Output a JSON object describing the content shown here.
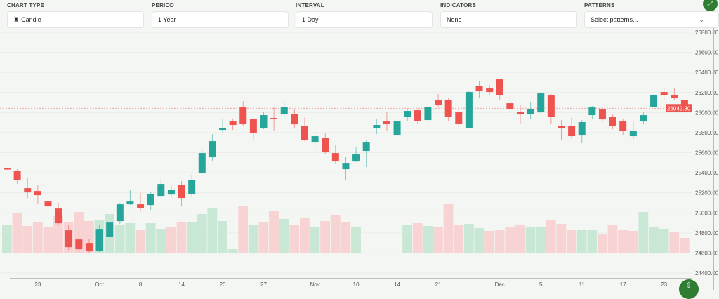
{
  "controls": {
    "chart_type": {
      "label": "CHART TYPE",
      "value": "Candle",
      "icon": "candle-icon"
    },
    "period": {
      "label": "PERIOD",
      "value": "1 Year"
    },
    "interval": {
      "label": "INTERVAL",
      "value": "1 Day"
    },
    "indicators": {
      "label": "INDICATORS",
      "value": "None"
    },
    "patterns": {
      "label": "PATTERNS",
      "placeholder": "Select patterns..."
    }
  },
  "colors": {
    "up": "#26a69a",
    "down": "#ef5350",
    "volume_up": "#c9e7d5",
    "volume_down": "#f7d3d3",
    "accent": "#2e7d32"
  },
  "chart_data": {
    "type": "candlestick",
    "ylim": [
      24400,
      26800
    ],
    "y_ticks": [
      "26800.00",
      "26600.00",
      "26400.00",
      "26200.00",
      "26000.00",
      "25800.00",
      "25600.00",
      "25400.00",
      "25200.00",
      "25000.00",
      "24800.00",
      "24600.00",
      "24400.00"
    ],
    "x_ticks": [
      {
        "i": 3,
        "label": "23"
      },
      {
        "i": 9,
        "label": "Oct"
      },
      {
        "i": 13,
        "label": "8"
      },
      {
        "i": 17,
        "label": "14"
      },
      {
        "i": 21,
        "label": "20"
      },
      {
        "i": 25,
        "label": "27"
      },
      {
        "i": 30,
        "label": "Nov"
      },
      {
        "i": 34,
        "label": "10"
      },
      {
        "i": 38,
        "label": "14"
      },
      {
        "i": 42,
        "label": "21"
      },
      {
        "i": 48,
        "label": "Dec"
      },
      {
        "i": 52,
        "label": "5"
      },
      {
        "i": 56,
        "label": "11"
      },
      {
        "i": 60,
        "label": "17"
      },
      {
        "i": 64,
        "label": "23"
      }
    ],
    "last_price": "26042.30",
    "ohlc": [
      [
        25445,
        25450,
        25428,
        25432
      ],
      [
        25421,
        25435,
        25288,
        25330
      ],
      [
        25246,
        25344,
        25148,
        25204
      ],
      [
        25218,
        25274,
        25085,
        25176
      ],
      [
        25113,
        25155,
        25029,
        25064
      ],
      [
        25043,
        25099,
        24882,
        24896
      ],
      [
        24826,
        24875,
        24630,
        24658
      ],
      [
        24735,
        24805,
        24609,
        24637
      ],
      [
        24700,
        24742,
        24595,
        24616
      ],
      [
        24623,
        24875,
        24609,
        24840
      ],
      [
        24763,
        24910,
        24756,
        24903
      ],
      [
        24917,
        25099,
        24889,
        25085
      ],
      [
        25085,
        25225,
        25078,
        25113
      ],
      [
        25085,
        25197,
        25015,
        25050
      ],
      [
        25078,
        25204,
        25029,
        25190
      ],
      [
        25169,
        25337,
        25162,
        25288
      ],
      [
        25183,
        25274,
        25155,
        25232
      ],
      [
        25281,
        25316,
        25064,
        25148
      ],
      [
        25190,
        25372,
        25162,
        25330
      ],
      [
        25400,
        25631,
        25386,
        25596
      ],
      [
        25554,
        25785,
        25519,
        25715
      ],
      [
        25827,
        25932,
        25792,
        25848
      ],
      [
        25911,
        25939,
        25827,
        25876
      ],
      [
        26058,
        26114,
        25862,
        25890
      ],
      [
        25939,
        25946,
        25722,
        25799
      ],
      [
        25848,
        26009,
        25834,
        25974
      ],
      [
        25946,
        26051,
        25813,
        25939
      ],
      [
        25988,
        26107,
        25960,
        26058
      ],
      [
        25988,
        26037,
        25848,
        25883
      ],
      [
        25869,
        25960,
        25715,
        25729
      ],
      [
        25701,
        25806,
        25645,
        25764
      ],
      [
        25750,
        25792,
        25582,
        25603
      ],
      [
        25596,
        25680,
        25491,
        25512
      ],
      [
        25435,
        25554,
        25323,
        25498
      ],
      [
        25512,
        25659,
        25505,
        25582
      ],
      [
        25617,
        25722,
        25456,
        25701
      ],
      [
        25841,
        25939,
        25785,
        25876
      ],
      [
        25911,
        26009,
        25813,
        25883
      ],
      [
        25771,
        25946,
        25743,
        25911
      ],
      [
        25953,
        26030,
        25911,
        26016
      ],
      [
        26023,
        26037,
        25883,
        25918
      ],
      [
        25925,
        26079,
        25862,
        26058
      ],
      [
        26121,
        26184,
        26058,
        26072
      ],
      [
        26128,
        26149,
        25911,
        25960
      ],
      [
        26002,
        26037,
        25862,
        25890
      ],
      [
        25848,
        26219,
        25848,
        26205
      ],
      [
        26268,
        26317,
        26142,
        26219
      ],
      [
        26240,
        26275,
        26177,
        26205
      ],
      [
        26331,
        26331,
        26121,
        26177
      ],
      [
        26093,
        26163,
        25995,
        26037
      ],
      [
        26009,
        26072,
        25890,
        25988
      ],
      [
        25981,
        26107,
        25939,
        26037
      ],
      [
        26002,
        26205,
        25988,
        26191
      ],
      [
        26170,
        26184,
        25890,
        25960
      ],
      [
        25869,
        25925,
        25729,
        25841
      ],
      [
        25869,
        25953,
        25736,
        25764
      ],
      [
        25771,
        25925,
        25694,
        25904
      ],
      [
        25974,
        26065,
        25939,
        26051
      ],
      [
        26030,
        26051,
        25911,
        25932
      ],
      [
        25960,
        25988,
        25834,
        25869
      ],
      [
        25911,
        25939,
        25778,
        25820
      ],
      [
        25764,
        25911,
        25729,
        25820
      ],
      [
        25911,
        26002,
        25883,
        25974
      ],
      [
        26058,
        26184,
        26051,
        26177
      ],
      [
        26205,
        26240,
        26121,
        26177
      ],
      [
        26177,
        26247,
        26128,
        26142
      ],
      [
        26128,
        26128,
        26009,
        26044
      ]
    ],
    "volume": [
      41,
      58,
      39,
      45,
      37,
      53,
      44,
      59,
      46,
      47,
      56,
      41,
      43,
      34,
      43,
      35,
      38,
      44,
      44,
      56,
      64,
      46,
      6,
      68,
      41,
      45,
      61,
      49,
      40,
      51,
      38,
      46,
      55,
      45,
      38,
      0,
      0,
      0,
      0,
      41,
      43,
      39,
      37,
      70,
      40,
      42,
      36,
      32,
      34,
      38,
      40,
      38,
      38,
      48,
      42,
      33,
      33,
      34,
      28,
      40,
      34,
      32,
      59,
      38,
      35,
      30,
      22
    ],
    "volume_up": [
      1,
      0,
      0,
      0,
      0,
      0,
      0,
      0,
      0,
      1,
      1,
      1,
      1,
      0,
      1,
      1,
      0,
      0,
      1,
      1,
      1,
      1,
      1,
      0,
      1,
      0,
      0,
      1,
      0,
      0,
      1,
      0,
      0,
      0,
      1,
      1,
      1,
      1,
      1,
      1,
      0,
      1,
      0,
      0,
      0,
      1,
      1,
      0,
      0,
      0,
      0,
      1,
      1,
      0,
      0,
      0,
      1,
      1,
      0,
      0,
      0,
      0,
      1,
      1,
      1,
      0,
      0
    ]
  },
  "fab": {
    "icon": "arrow-up-icon"
  },
  "expand": {
    "icon": "expand-icon"
  }
}
